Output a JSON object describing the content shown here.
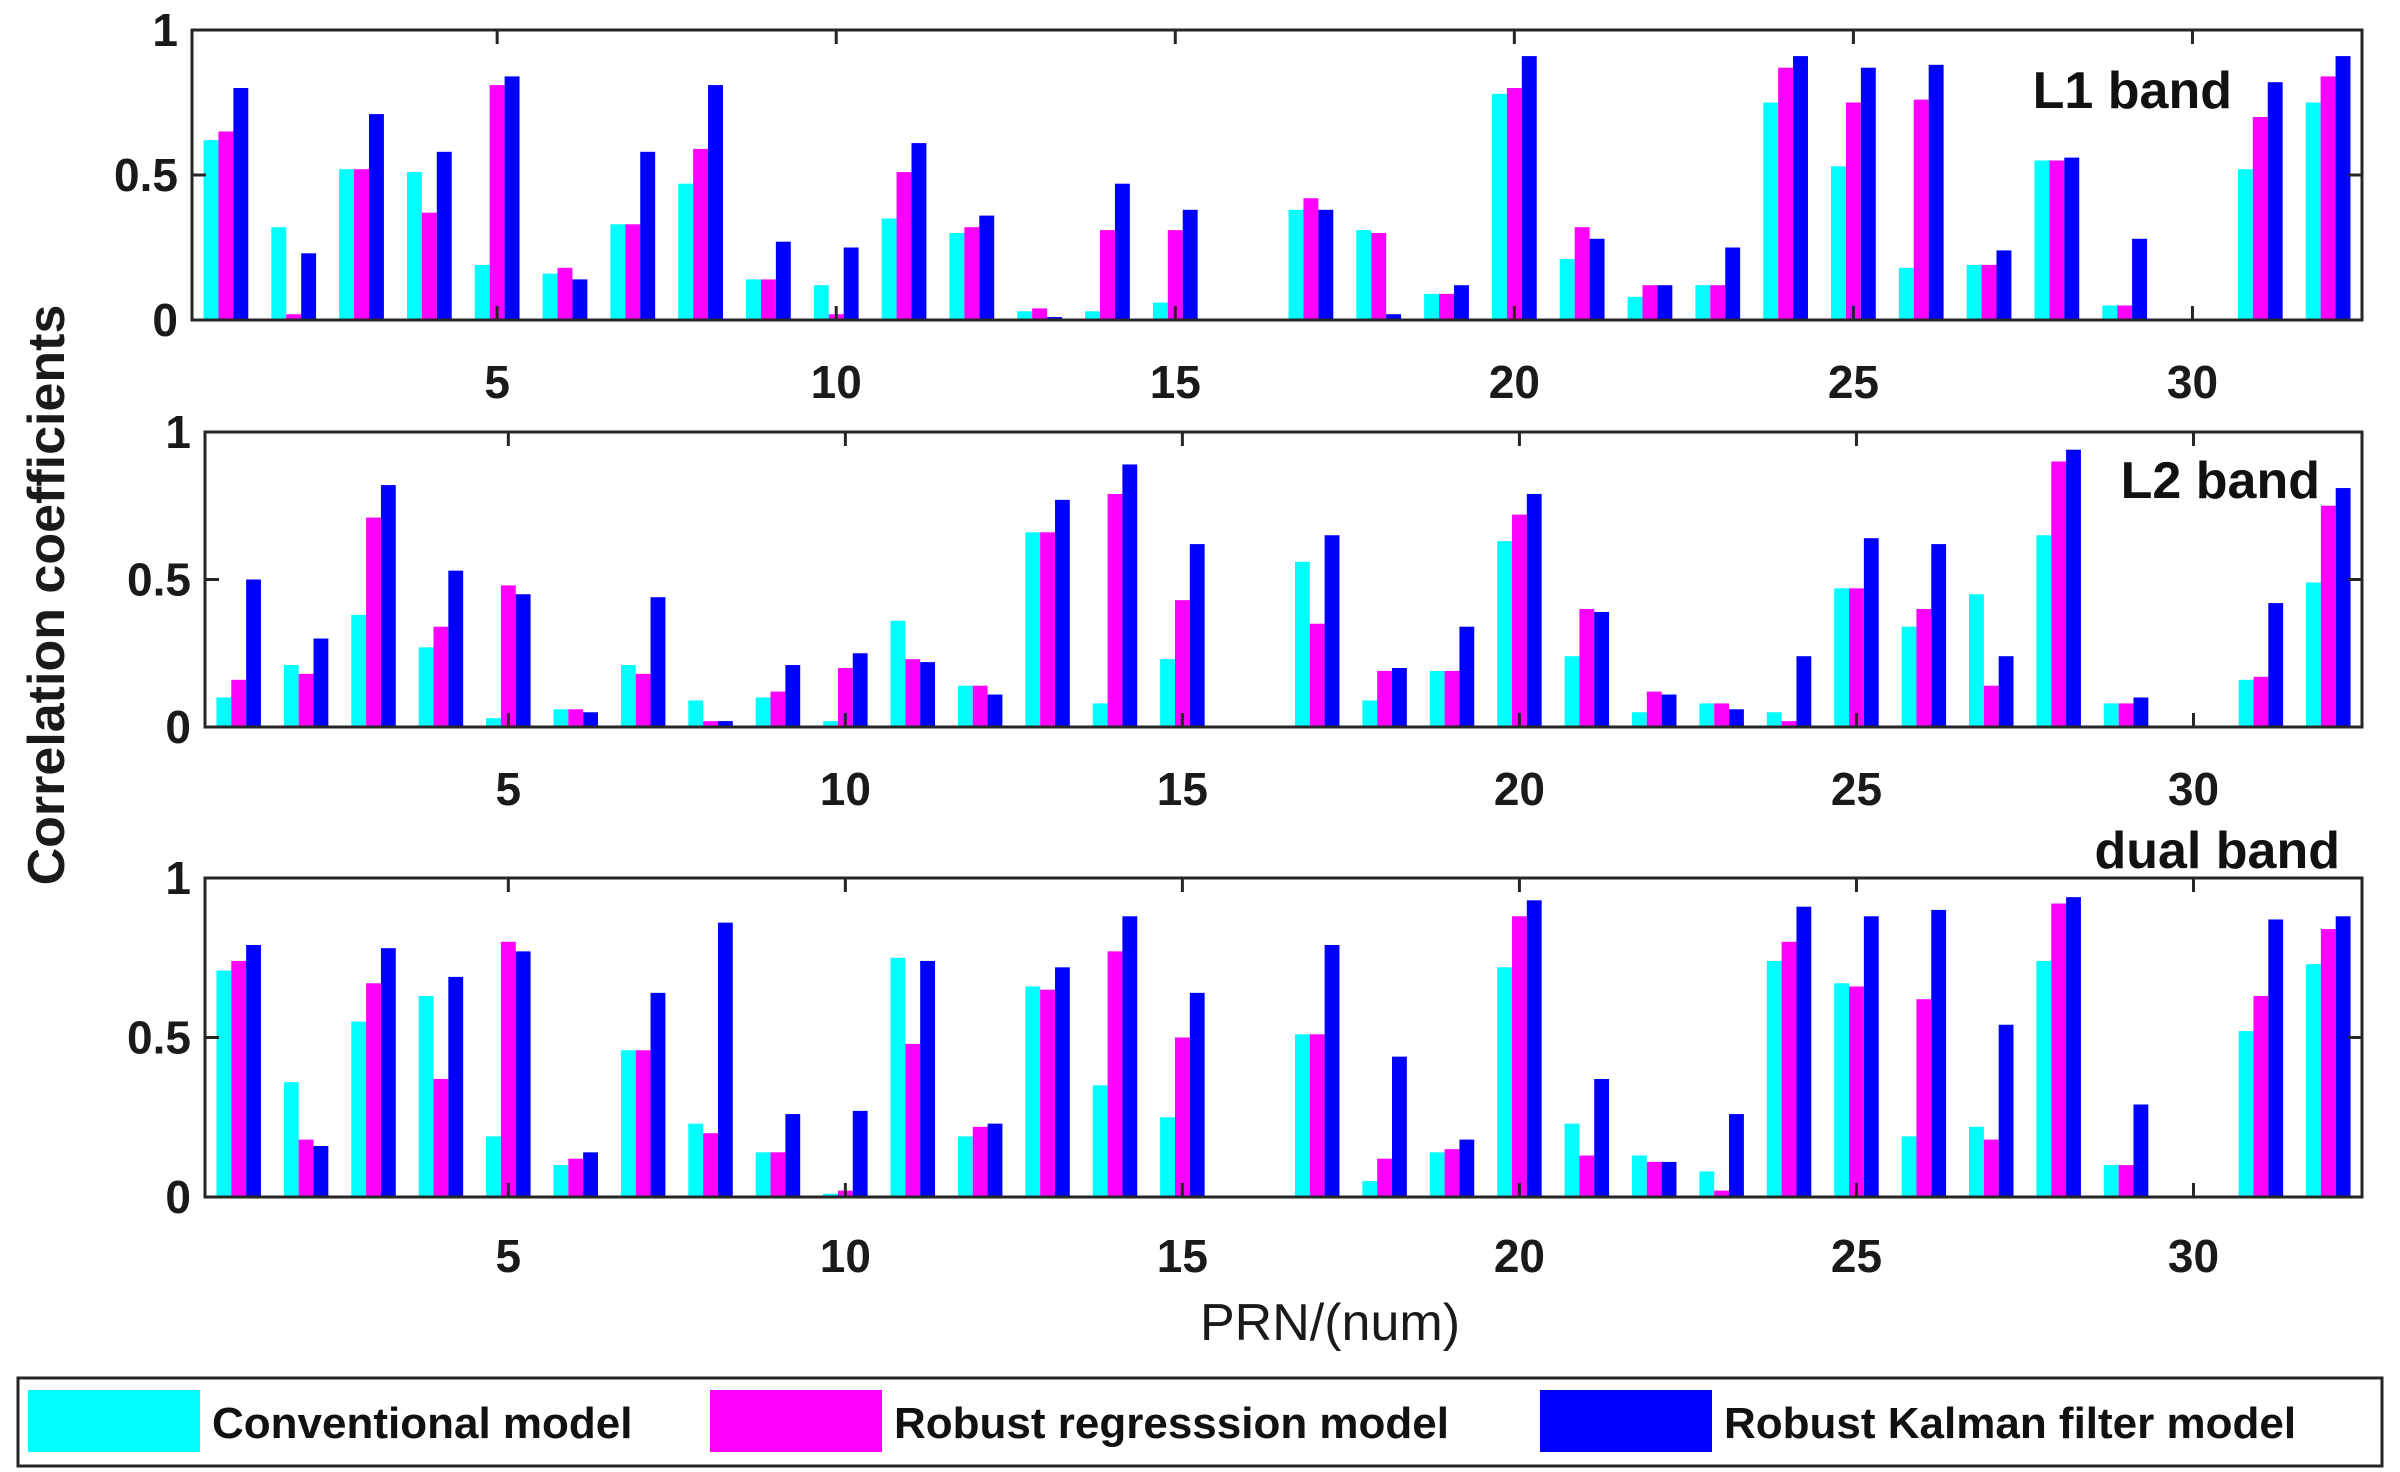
{
  "colors": {
    "conventional": "#00FFFF",
    "robust_regression": "#FF00FF",
    "robust_kalman": "#0000FF",
    "axis": "#262626"
  },
  "ylabel": "Correlation coefficients",
  "xlabel": "PRN/(num)",
  "legend": [
    {
      "name": "Conventional model",
      "color": "#00FFFF"
    },
    {
      "name": "Robust regresssion model",
      "color": "#FF00FF"
    },
    {
      "name": "Robust Kalman filter model",
      "color": "#0000FF"
    }
  ],
  "chart_data": [
    {
      "type": "bar",
      "label": "L1 band",
      "xlim": [
        0.5,
        32.5
      ],
      "ylim": [
        0,
        1
      ],
      "yticks": [
        0,
        0.5,
        1
      ],
      "ytick_labels": [
        "0",
        "0.5",
        "1"
      ],
      "xticks": [
        5,
        10,
        15,
        20,
        25,
        30
      ],
      "categories": [
        1,
        2,
        3,
        4,
        5,
        6,
        7,
        8,
        9,
        10,
        11,
        12,
        13,
        14,
        15,
        16,
        17,
        18,
        19,
        20,
        21,
        22,
        23,
        24,
        25,
        26,
        27,
        28,
        29,
        30,
        31,
        32
      ],
      "series": [
        {
          "name": "Conventional model",
          "values": [
            0.62,
            0.32,
            0.52,
            0.51,
            0.19,
            0.16,
            0.33,
            0.47,
            0.14,
            0.12,
            0.35,
            0.3,
            0.03,
            0.03,
            0.06,
            0,
            0.38,
            0.31,
            0.09,
            0.78,
            0.21,
            0.08,
            0.12,
            0.75,
            0.53,
            0.18,
            0.19,
            0.55,
            0.05,
            0,
            0.52,
            0.75
          ]
        },
        {
          "name": "Robust regresssion model",
          "values": [
            0.65,
            0.02,
            0.52,
            0.37,
            0.81,
            0.18,
            0.33,
            0.59,
            0.14,
            0.02,
            0.51,
            0.32,
            0.04,
            0.31,
            0.31,
            0,
            0.42,
            0.3,
            0.09,
            0.8,
            0.32,
            0.12,
            0.12,
            0.87,
            0.75,
            0.76,
            0.19,
            0.55,
            0.05,
            0,
            0.7,
            0.84
          ]
        },
        {
          "name": "Robust Kalman filter model",
          "values": [
            0.8,
            0.23,
            0.71,
            0.58,
            0.84,
            0.14,
            0.58,
            0.81,
            0.27,
            0.25,
            0.61,
            0.36,
            0.01,
            0.47,
            0.38,
            0,
            0.38,
            0.02,
            0.12,
            0.91,
            0.28,
            0.12,
            0.25,
            0.91,
            0.87,
            0.88,
            0.24,
            0.56,
            0.28,
            0,
            0.82,
            0.91
          ]
        }
      ]
    },
    {
      "type": "bar",
      "label": "L2 band",
      "xlim": [
        0.5,
        32.5
      ],
      "ylim": [
        0,
        1
      ],
      "yticks": [
        0,
        0.5,
        1
      ],
      "ytick_labels": [
        "0",
        "0.5",
        "1"
      ],
      "xticks": [
        5,
        10,
        15,
        20,
        25,
        30
      ],
      "categories": [
        1,
        2,
        3,
        4,
        5,
        6,
        7,
        8,
        9,
        10,
        11,
        12,
        13,
        14,
        15,
        16,
        17,
        18,
        19,
        20,
        21,
        22,
        23,
        24,
        25,
        26,
        27,
        28,
        29,
        30,
        31,
        32
      ],
      "series": [
        {
          "name": "Conventional model",
          "values": [
            0.1,
            0.21,
            0.38,
            0.27,
            0.03,
            0.06,
            0.21,
            0.09,
            0.1,
            0.02,
            0.36,
            0.14,
            0.66,
            0.08,
            0.23,
            0,
            0.56,
            0.09,
            0.19,
            0.63,
            0.24,
            0.05,
            0.08,
            0.05,
            0.47,
            0.34,
            0.45,
            0.65,
            0.08,
            0,
            0.16,
            0.49
          ]
        },
        {
          "name": "Robust regresssion model",
          "values": [
            0.16,
            0.18,
            0.71,
            0.34,
            0.48,
            0.06,
            0.18,
            0.02,
            0.12,
            0.2,
            0.23,
            0.14,
            0.66,
            0.79,
            0.43,
            0,
            0.35,
            0.19,
            0.19,
            0.72,
            0.4,
            0.12,
            0.08,
            0.02,
            0.47,
            0.4,
            0.14,
            0.9,
            0.08,
            0,
            0.17,
            0.75
          ]
        },
        {
          "name": "Robust Kalman filter model",
          "values": [
            0.5,
            0.3,
            0.82,
            0.53,
            0.45,
            0.05,
            0.44,
            0.02,
            0.21,
            0.25,
            0.22,
            0.11,
            0.77,
            0.89,
            0.62,
            0,
            0.65,
            0.2,
            0.34,
            0.79,
            0.39,
            0.11,
            0.06,
            0.24,
            0.64,
            0.62,
            0.24,
            0.94,
            0.1,
            0,
            0.42,
            0.81
          ]
        }
      ]
    },
    {
      "type": "bar",
      "label": "dual band",
      "xlim": [
        0.5,
        32.5
      ],
      "ylim": [
        0,
        1
      ],
      "yticks": [
        0,
        0.5,
        1
      ],
      "ytick_labels": [
        "0",
        "0.5",
        "1"
      ],
      "xticks": [
        5,
        10,
        15,
        20,
        25,
        30
      ],
      "categories": [
        1,
        2,
        3,
        4,
        5,
        6,
        7,
        8,
        9,
        10,
        11,
        12,
        13,
        14,
        15,
        16,
        17,
        18,
        19,
        20,
        21,
        22,
        23,
        24,
        25,
        26,
        27,
        28,
        29,
        30,
        31,
        32
      ],
      "series": [
        {
          "name": "Conventional model",
          "values": [
            0.71,
            0.36,
            0.55,
            0.63,
            0.19,
            0.1,
            0.46,
            0.23,
            0.14,
            0.01,
            0.75,
            0.19,
            0.66,
            0.35,
            0.25,
            0,
            0.51,
            0.05,
            0.14,
            0.72,
            0.23,
            0.13,
            0.08,
            0.74,
            0.67,
            0.19,
            0.22,
            0.74,
            0.1,
            0,
            0.52,
            0.73
          ]
        },
        {
          "name": "Robust regresssion model",
          "values": [
            0.74,
            0.18,
            0.67,
            0.37,
            0.8,
            0.12,
            0.46,
            0.2,
            0.14,
            0.02,
            0.48,
            0.22,
            0.65,
            0.77,
            0.5,
            0,
            0.51,
            0.12,
            0.15,
            0.88,
            0.13,
            0.11,
            0.02,
            0.8,
            0.66,
            0.62,
            0.18,
            0.92,
            0.1,
            0,
            0.63,
            0.84
          ]
        },
        {
          "name": "Robust Kalman filter model",
          "values": [
            0.79,
            0.16,
            0.78,
            0.69,
            0.77,
            0.14,
            0.64,
            0.86,
            0.26,
            0.27,
            0.74,
            0.23,
            0.72,
            0.88,
            0.64,
            0,
            0.79,
            0.44,
            0.18,
            0.93,
            0.37,
            0.11,
            0.26,
            0.91,
            0.88,
            0.9,
            0.54,
            0.94,
            0.29,
            0,
            0.87,
            0.88
          ]
        }
      ]
    }
  ]
}
